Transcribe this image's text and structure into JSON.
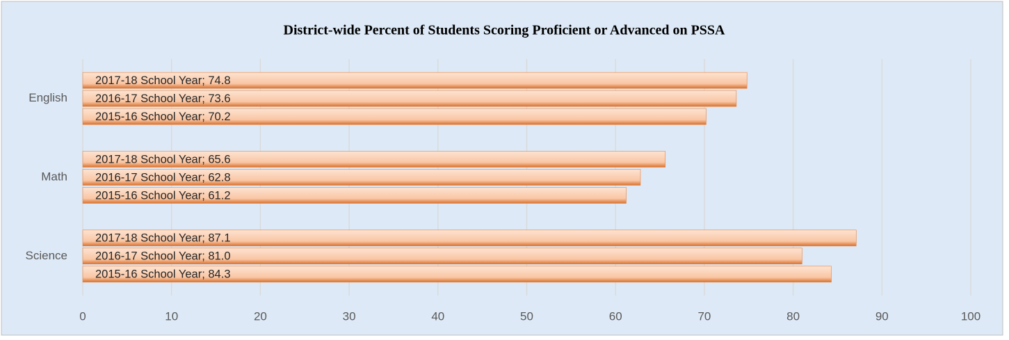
{
  "chart_data": {
    "type": "bar",
    "orientation": "horizontal",
    "title": "District-wide Percent of Students Scoring Proficient or Advanced on PSSA",
    "categories": [
      "English",
      "Math",
      "Science"
    ],
    "series": [
      {
        "name": "2015-16 School Year",
        "color": "#e8823f",
        "values": [
          70.2,
          61.2,
          84.3
        ],
        "value_labels": [
          "2015-16 School Year; 70.2",
          "2015-16 School Year; 61.2",
          "2015-16 School Year; 84.3"
        ]
      },
      {
        "name": "2016-17 School Year",
        "color": "#e8823f",
        "values": [
          73.6,
          62.8,
          81.0
        ],
        "value_labels": [
          "2016-17 School Year; 73.6",
          "2016-17 School Year; 62.8",
          "2016-17 School Year; 81.0"
        ]
      },
      {
        "name": "2017-18 School Year",
        "color": "#e8823f",
        "values": [
          74.8,
          65.6,
          87.1
        ],
        "value_labels": [
          "2017-18 School Year; 74.8",
          "2017-18 School Year; 65.6",
          "2017-18 School Year; 87.1"
        ]
      }
    ],
    "xlim": [
      0,
      100
    ],
    "xticks": [
      0,
      10,
      20,
      30,
      40,
      50,
      60,
      70,
      80,
      90,
      100
    ],
    "grid": true
  }
}
